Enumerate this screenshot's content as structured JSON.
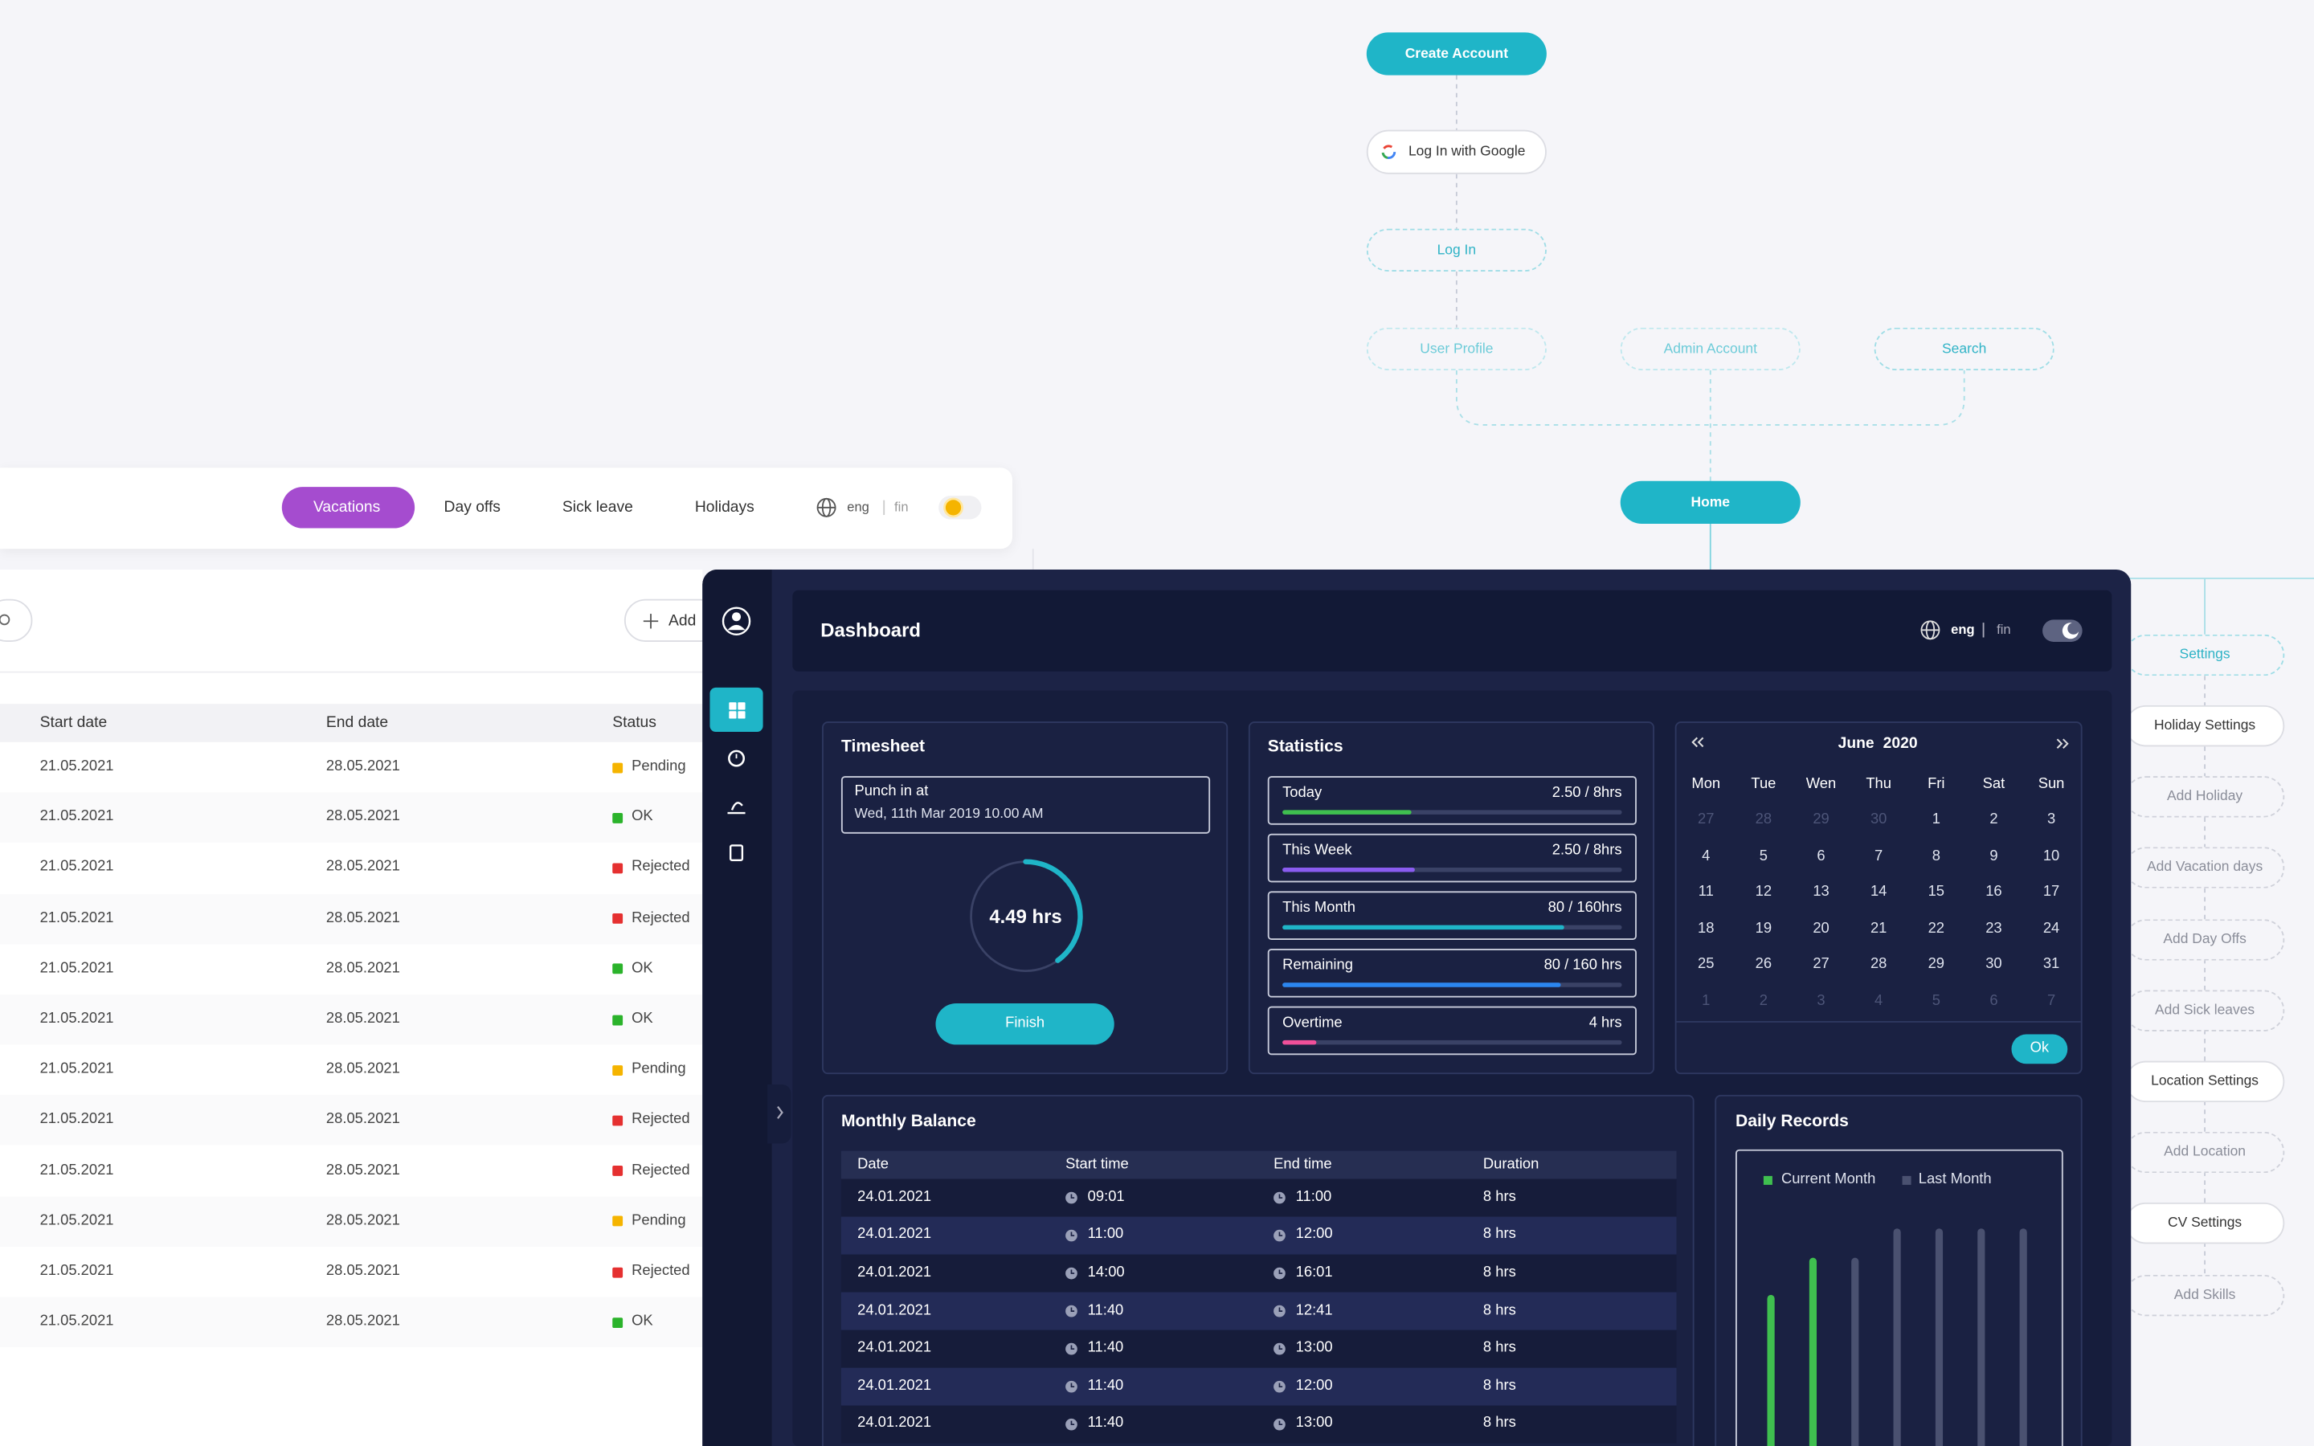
{
  "flow": {
    "create": "Create Account",
    "google": "Log In with Google",
    "login": "Log In",
    "user": "User Profile",
    "admin": "Admin Account",
    "search": "Search",
    "home": "Home",
    "settings": "Settings",
    "children": [
      "Holiday Settings",
      "Add Holiday",
      "Add Vacation days",
      "Add Day Offs",
      "Add Sick leaves",
      "Location Settings",
      "Add Location",
      "CV Settings",
      "Add Skills"
    ]
  },
  "tabs": {
    "items": [
      "Vacations",
      "Day offs",
      "Sick leave",
      "Holidays"
    ],
    "lang": [
      "eng",
      "fin"
    ]
  },
  "requests_table": {
    "add": "Add",
    "columns": [
      "Start date",
      "End date",
      "Status"
    ],
    "status_colors": {
      "Pending": "#f5b400",
      "OK": "#2bb32b",
      "Rejected": "#e53030"
    },
    "rows": [
      [
        "21.05.2021",
        "28.05.2021",
        "Pending"
      ],
      [
        "21.05.2021",
        "28.05.2021",
        "OK"
      ],
      [
        "21.05.2021",
        "28.05.2021",
        "Rejected"
      ],
      [
        "21.05.2021",
        "28.05.2021",
        "Rejected"
      ],
      [
        "21.05.2021",
        "28.05.2021",
        "OK"
      ],
      [
        "21.05.2021",
        "28.05.2021",
        "OK"
      ],
      [
        "21.05.2021",
        "28.05.2021",
        "Pending"
      ],
      [
        "21.05.2021",
        "28.05.2021",
        "Rejected"
      ],
      [
        "21.05.2021",
        "28.05.2021",
        "Rejected"
      ],
      [
        "21.05.2021",
        "28.05.2021",
        "Pending"
      ],
      [
        "21.05.2021",
        "28.05.2021",
        "Rejected"
      ],
      [
        "21.05.2021",
        "28.05.2021",
        "OK"
      ]
    ]
  },
  "dashboard": {
    "title": "Dashboard",
    "lang": [
      "eng",
      "fin"
    ],
    "timesheet": {
      "title": "Timesheet",
      "punch_label": "Punch in at",
      "punch_time": "Wed, 11th Mar 2019 10.00 AM",
      "hours": "4.49 hrs",
      "progress": 40,
      "button": "Finish"
    },
    "statistics": {
      "title": "Statistics",
      "rows": [
        {
          "label": "Today",
          "value": "2.50 / 8hrs",
          "progress": 38,
          "color": "#3fbf4f"
        },
        {
          "label": "This Week",
          "value": "2.50 / 8hrs",
          "progress": 39,
          "color": "#8a5cf0"
        },
        {
          "label": "This Month",
          "value": "80 / 160hrs",
          "progress": 83,
          "color": "#1fb5c8"
        },
        {
          "label": "Remaining",
          "value": "80 / 160 hrs",
          "progress": 82,
          "color": "#2b86f0"
        },
        {
          "label": "Overtime",
          "value": "4 hrs",
          "progress": 10,
          "color": "#f0509a"
        }
      ]
    },
    "calendar": {
      "month": "June",
      "year": 2020,
      "weekdays": [
        "Mon",
        "Tue",
        "Wen",
        "Thu",
        "Fri",
        "Sat",
        "Sun"
      ],
      "leading": [
        27,
        28,
        29,
        30
      ],
      "days": [
        1,
        2,
        3,
        4,
        5,
        6,
        7,
        8,
        9,
        10,
        11,
        12,
        13,
        14,
        15,
        16,
        17,
        18,
        19,
        20,
        21,
        22,
        23,
        24,
        25,
        26,
        27,
        28,
        29,
        30,
        31
      ],
      "trailing": [
        1,
        2,
        3,
        4,
        5,
        6,
        7
      ],
      "button": "Ok"
    },
    "monthly_balance": {
      "title": "Monthly Balance",
      "columns": [
        "Date",
        "Start time",
        "End time",
        "Duration"
      ],
      "rows": [
        [
          "24.01.2021",
          "09:01",
          "11:00",
          "8 hrs"
        ],
        [
          "24.01.2021",
          "11:00",
          "12:00",
          "8 hrs"
        ],
        [
          "24.01.2021",
          "14:00",
          "16:01",
          "8 hrs"
        ],
        [
          "24.01.2021",
          "11:40",
          "12:41",
          "8 hrs"
        ],
        [
          "24.01.2021",
          "11:40",
          "13:00",
          "8 hrs"
        ],
        [
          "24.01.2021",
          "11:40",
          "12:00",
          "8 hrs"
        ],
        [
          "24.01.2021",
          "11:40",
          "13:00",
          "8 hrs"
        ]
      ]
    },
    "daily_records": {
      "title": "Daily Records",
      "ylim": [
        0,
        100
      ],
      "series": [
        {
          "name": "Current Month",
          "color": "#3fbf4f",
          "values": [
            68,
            82
          ]
        },
        {
          "name": "Last Month",
          "color": "#4a5170",
          "values": [
            82,
            93,
            93,
            93,
            93
          ]
        }
      ]
    }
  }
}
